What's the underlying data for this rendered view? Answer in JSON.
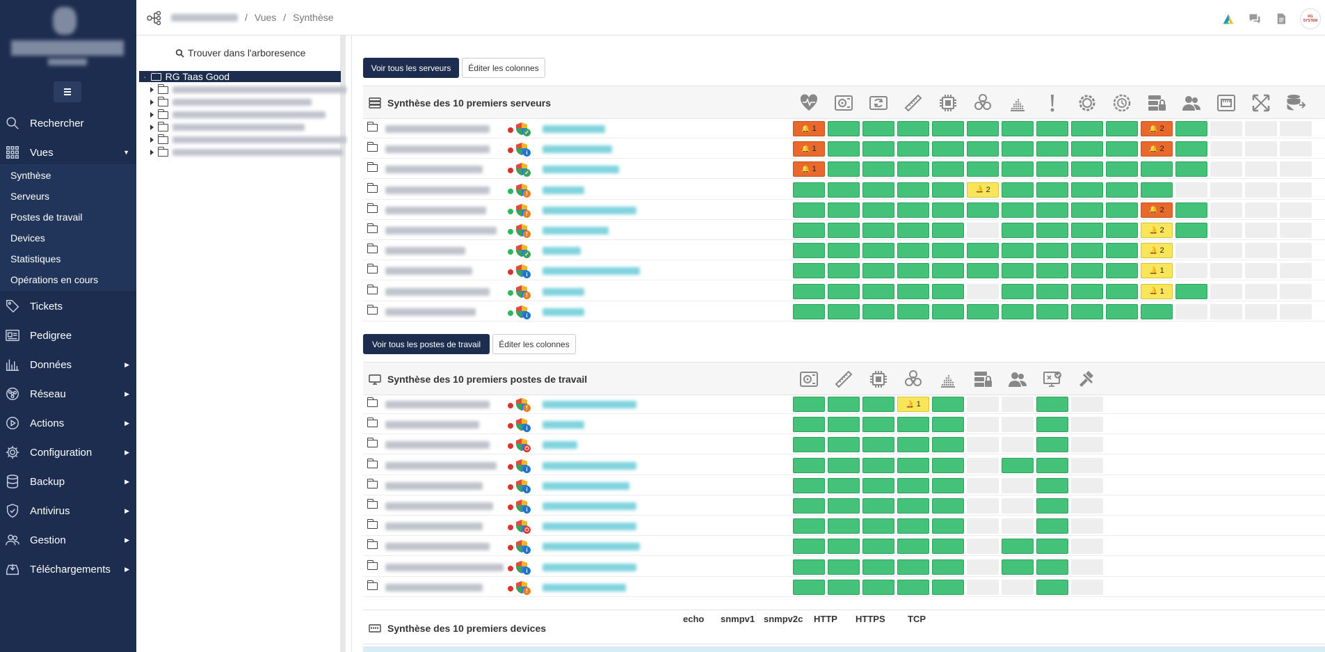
{
  "sidebar": {
    "items": [
      {
        "key": "search",
        "label": "Rechercher",
        "icon": "search-icon",
        "arrow": ""
      },
      {
        "key": "vues",
        "label": "Vues",
        "icon": "grid-icon",
        "arrow": "▼"
      },
      {
        "key": "tickets",
        "label": "Tickets",
        "icon": "tag-icon",
        "arrow": ""
      },
      {
        "key": "pedigree",
        "label": "Pedigree",
        "icon": "id-card-icon",
        "arrow": ""
      },
      {
        "key": "donnees",
        "label": "Données",
        "icon": "bar-chart-icon",
        "arrow": "▶"
      },
      {
        "key": "reseau",
        "label": "Réseau",
        "icon": "network-icon",
        "arrow": "▶"
      },
      {
        "key": "actions",
        "label": "Actions",
        "icon": "play-icon",
        "arrow": "▶"
      },
      {
        "key": "config",
        "label": "Configuration",
        "icon": "gear-icon",
        "arrow": "▶"
      },
      {
        "key": "backup",
        "label": "Backup",
        "icon": "database-icon",
        "arrow": "▶"
      },
      {
        "key": "antivirus",
        "label": "Antivirus",
        "icon": "shield-icon",
        "arrow": "▶"
      },
      {
        "key": "gestion",
        "label": "Gestion",
        "icon": "users-icon",
        "arrow": "▶"
      },
      {
        "key": "downloads",
        "label": "Téléchargements",
        "icon": "download-tray-icon",
        "arrow": "▶"
      }
    ],
    "submenu": [
      "Synthèse",
      "Serveurs",
      "Postes de travail",
      "Devices",
      "Statistiques",
      "Opérations en cours"
    ]
  },
  "breadcrumb": {
    "sep1": "/",
    "views": "Vues",
    "sep2": "/",
    "current": "Synthèse"
  },
  "topbar": {
    "avatar_text": "RG SYSTEM"
  },
  "tree": {
    "search_label": "Trouver dans l'arboresence",
    "root_label": "RG Taas Good"
  },
  "servers": {
    "btn_all": "Voir tous les serveurs",
    "btn_cols": "Éditer les colonnes",
    "title": "Synthèse des 10 premiers serveurs",
    "columns": [
      "heartbeat-icon",
      "disk-icon",
      "sync-icon",
      "memory-icon",
      "cpu-icon",
      "biohazard-icon",
      "activity-icon",
      "alert-icon",
      "service-gear-icon",
      "scheduled-task-icon",
      "server-lock-icon",
      "users-icon",
      "network-port-icon",
      "expand-icon",
      "database-sync-icon"
    ],
    "rows": [
      {
        "dot": "red",
        "badge": "ok",
        "cells": [
          "e1",
          "k",
          "k",
          "k",
          "k",
          "k",
          "k",
          "k",
          "k",
          "k",
          "e2",
          "k",
          "n",
          "n",
          "n"
        ]
      },
      {
        "dot": "red",
        "badge": "info",
        "cells": [
          "e1",
          "k",
          "k",
          "k",
          "k",
          "k",
          "k",
          "k",
          "k",
          "k",
          "e2",
          "k",
          "n",
          "n",
          "n"
        ]
      },
      {
        "dot": "red",
        "badge": "ok",
        "cells": [
          "e1",
          "k",
          "k",
          "k",
          "k",
          "k",
          "k",
          "k",
          "k",
          "k",
          "k",
          "k",
          "n",
          "n",
          "n"
        ]
      },
      {
        "dot": "green",
        "badge": "warn",
        "cells": [
          "k",
          "k",
          "k",
          "k",
          "k",
          "w2",
          "k",
          "k",
          "k",
          "k",
          "k",
          "n",
          "n",
          "n",
          "n"
        ]
      },
      {
        "dot": "green",
        "badge": "warn",
        "cells": [
          "k",
          "k",
          "k",
          "k",
          "k",
          "k",
          "k",
          "k",
          "k",
          "k",
          "e2",
          "k",
          "n",
          "n",
          "n"
        ]
      },
      {
        "dot": "green",
        "badge": "warn",
        "cells": [
          "k",
          "k",
          "k",
          "k",
          "k",
          "n",
          "k",
          "k",
          "k",
          "k",
          "w2",
          "k",
          "n",
          "n",
          "n"
        ]
      },
      {
        "dot": "green",
        "badge": "ok",
        "cells": [
          "k",
          "k",
          "k",
          "k",
          "k",
          "k",
          "k",
          "k",
          "k",
          "k",
          "w2",
          "n",
          "n",
          "n",
          "n"
        ]
      },
      {
        "dot": "red",
        "badge": "info",
        "cells": [
          "k",
          "k",
          "k",
          "k",
          "k",
          "k",
          "k",
          "k",
          "k",
          "k",
          "w1",
          "n",
          "n",
          "n",
          "n"
        ]
      },
      {
        "dot": "green",
        "badge": "warn",
        "cells": [
          "k",
          "k",
          "k",
          "k",
          "k",
          "n",
          "k",
          "k",
          "k",
          "k",
          "w1",
          "k",
          "n",
          "n",
          "n"
        ]
      },
      {
        "dot": "green",
        "badge": "info",
        "cells": [
          "k",
          "k",
          "k",
          "k",
          "k",
          "k",
          "k",
          "k",
          "k",
          "k",
          "k",
          "n",
          "n",
          "n",
          "n"
        ]
      }
    ]
  },
  "workstations": {
    "btn_all": "Voir tous les postes de travail",
    "btn_cols": "Éditer les colonnes",
    "title": "Synthèse des 10 premiers postes de travail",
    "columns": [
      "disk-icon",
      "memory-icon",
      "cpu-icon",
      "biohazard-icon",
      "activity-icon",
      "server-lock-icon",
      "users-icon",
      "monitor-check-icon",
      "tools-icon"
    ],
    "rows": [
      {
        "dot": "red",
        "badge": "warn",
        "cells": [
          "k",
          "k",
          "k",
          "w1",
          "k",
          "n",
          "n",
          "k",
          "n"
        ]
      },
      {
        "dot": "red",
        "badge": "info",
        "cells": [
          "k",
          "k",
          "k",
          "k",
          "k",
          "n",
          "n",
          "k",
          "n"
        ]
      },
      {
        "dot": "red",
        "badge": "power",
        "cells": [
          "k",
          "k",
          "k",
          "k",
          "k",
          "n",
          "n",
          "k",
          "n"
        ]
      },
      {
        "dot": "red",
        "badge": "info",
        "cells": [
          "k",
          "k",
          "k",
          "k",
          "k",
          "n",
          "k",
          "k",
          "n"
        ]
      },
      {
        "dot": "red",
        "badge": "info",
        "cells": [
          "k",
          "k",
          "k",
          "k",
          "k",
          "n",
          "n",
          "k",
          "n"
        ]
      },
      {
        "dot": "red",
        "badge": "info",
        "cells": [
          "k",
          "k",
          "k",
          "k",
          "k",
          "n",
          "n",
          "k",
          "n"
        ]
      },
      {
        "dot": "red",
        "badge": "power",
        "cells": [
          "k",
          "k",
          "k",
          "k",
          "k",
          "n",
          "n",
          "k",
          "n"
        ]
      },
      {
        "dot": "red",
        "badge": "info",
        "cells": [
          "k",
          "k",
          "k",
          "k",
          "k",
          "n",
          "k",
          "k",
          "n"
        ]
      },
      {
        "dot": "red",
        "badge": "info",
        "cells": [
          "k",
          "k",
          "k",
          "k",
          "k",
          "n",
          "k",
          "k",
          "n"
        ]
      },
      {
        "dot": "red",
        "badge": "warn",
        "cells": [
          "k",
          "k",
          "k",
          "k",
          "k",
          "n",
          "n",
          "k",
          "n"
        ]
      }
    ]
  },
  "devices": {
    "title": "Synthèse des 10 premiers devices",
    "columns": [
      "echo",
      "snmpv1",
      "snmpv2c",
      "HTTP",
      "HTTPS",
      "TCP"
    ]
  },
  "colors": {
    "ok": "#45c27a",
    "warn": "#f8e55a",
    "error": "#e9692c",
    "na": "#eeeeee",
    "navy": "#1c2d4f"
  }
}
